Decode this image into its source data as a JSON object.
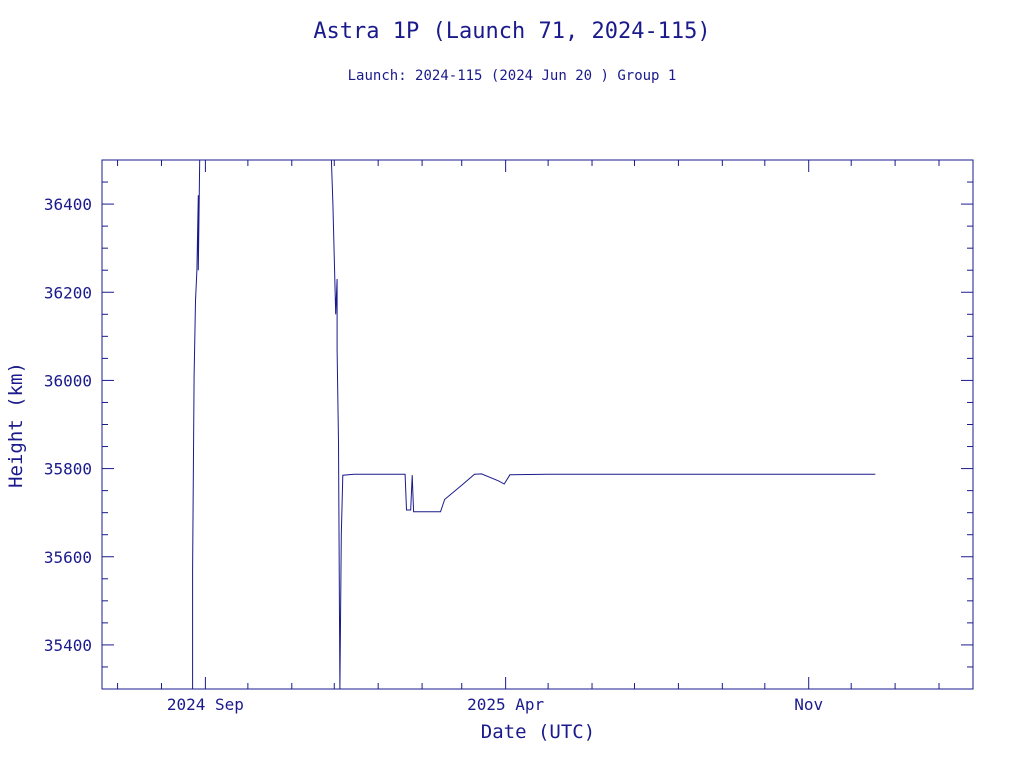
{
  "chart_data": {
    "type": "line",
    "title": "Astra 1P (Launch 71, 2024-115)",
    "subtitle": "Launch: 2024-115  (2024 Jun 20 )  Group 1",
    "xlabel": "Date (UTC)",
    "ylabel": "Height (km)",
    "xlim": [
      "2024-06-20",
      "2026-02-25"
    ],
    "ylim": [
      35300,
      36500
    ],
    "x_ticks": [
      {
        "date": "2024-09-01",
        "label": "2024 Sep"
      },
      {
        "date": "2025-04-01",
        "label": "2025 Apr"
      },
      {
        "date": "2025-11-01",
        "label": "Nov"
      }
    ],
    "y_ticks": [
      35400,
      35600,
      35800,
      36000,
      36200,
      36400
    ],
    "grid": false,
    "series": [
      {
        "color": "#1a1a8c",
        "points": [
          [
            "2024-08-23",
            35300
          ],
          [
            "2024-08-23",
            35570
          ],
          [
            "2024-08-24",
            36010
          ],
          [
            "2024-08-25",
            36180
          ],
          [
            "2024-08-26",
            36250
          ],
          [
            "2024-08-27",
            36420
          ],
          [
            "2024-08-27",
            36250
          ],
          [
            "2024-08-28",
            36500
          ],
          [
            "2024-11-29",
            36500
          ],
          [
            "2024-11-30",
            36400
          ],
          [
            "2024-12-02",
            36150
          ],
          [
            "2024-12-03",
            36230
          ],
          [
            "2024-12-03",
            36070
          ],
          [
            "2024-12-04",
            35860
          ],
          [
            "2024-12-05",
            35300
          ],
          [
            "2024-12-06",
            35650
          ],
          [
            "2024-12-07",
            35785
          ],
          [
            "2024-12-15",
            35787
          ],
          [
            "2025-01-05",
            35787
          ],
          [
            "2025-01-20",
            35787
          ],
          [
            "2025-01-21",
            35706
          ],
          [
            "2025-01-24",
            35706
          ],
          [
            "2025-01-25",
            35785
          ],
          [
            "2025-01-26",
            35702
          ],
          [
            "2025-02-04",
            35702
          ],
          [
            "2025-02-14",
            35702
          ],
          [
            "2025-02-17",
            35730
          ],
          [
            "2025-03-01",
            35762
          ],
          [
            "2025-03-10",
            35787
          ],
          [
            "2025-03-15",
            35788
          ],
          [
            "2025-03-27",
            35772
          ],
          [
            "2025-03-31",
            35765
          ],
          [
            "2025-04-04",
            35786
          ],
          [
            "2025-05-01",
            35787
          ],
          [
            "2025-07-01",
            35787
          ],
          [
            "2025-09-01",
            35787
          ],
          [
            "2025-11-01",
            35787
          ],
          [
            "2025-12-18",
            35787
          ]
        ]
      }
    ]
  }
}
